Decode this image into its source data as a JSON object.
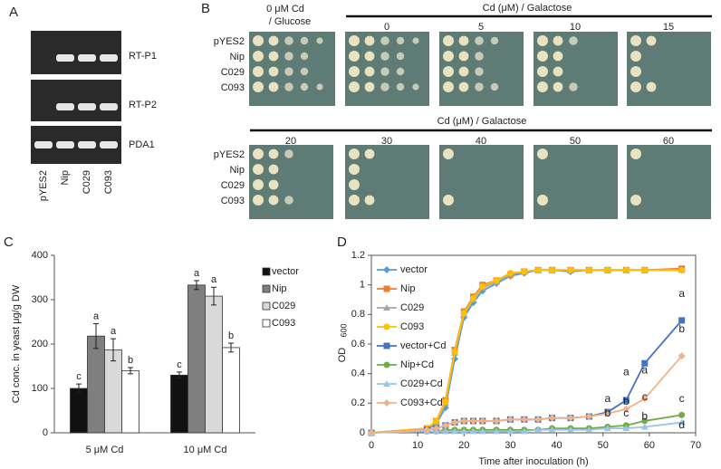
{
  "panels": {
    "a": "A",
    "b": "B",
    "c": "C",
    "d": "D"
  },
  "gel": {
    "rows": [
      "RT-P1",
      "RT-P2",
      "PDA1"
    ],
    "lanes": [
      "pYES2",
      "Nip",
      "C029",
      "C093"
    ]
  },
  "spot_assay": {
    "glucose_header": [
      "0 μM Cd",
      "/ Glucose"
    ],
    "galactose_header": "Cd (μM) / Galactose",
    "galactose_header_2": "Cd (μM) / Galactose",
    "top_concentrations": [
      "0",
      "5",
      "10",
      "15"
    ],
    "bottom_concentrations": [
      "20",
      "30",
      "40",
      "50",
      "60"
    ],
    "top_strains": [
      "pYES2",
      "Nip",
      "C029",
      "C093"
    ],
    "bottom_strains": [
      "pYES2",
      "Nip",
      "C029",
      "C093"
    ]
  },
  "chart_data": [
    {
      "type": "bar",
      "y_label": "Cd conc. in yeast μg/g DW",
      "categories": [
        "5 μM Cd",
        "10 μM Cd"
      ],
      "series": [
        {
          "name": "vector",
          "color": "#111111",
          "values": [
            100,
            130
          ],
          "errors": [
            10,
            7
          ],
          "letters": [
            "c",
            "c"
          ]
        },
        {
          "name": "Nip",
          "color": "#7f7f7f",
          "values": [
            218,
            333
          ],
          "errors": [
            28,
            10
          ],
          "letters": [
            "a",
            "a"
          ]
        },
        {
          "name": "C029",
          "color": "#d9d9d9",
          "values": [
            187,
            308
          ],
          "errors": [
            25,
            20
          ],
          "letters": [
            "a",
            "a"
          ]
        },
        {
          "name": "C093",
          "color": "#ffffff",
          "values": [
            140,
            192
          ],
          "errors": [
            7,
            10
          ],
          "letters": [
            "b",
            "b"
          ]
        }
      ],
      "ylim": [
        0,
        400
      ],
      "yticks": [
        0,
        100,
        200,
        300,
        400
      ]
    },
    {
      "type": "line",
      "x_label": "Time after inoculation (h)",
      "y_label": "OD",
      "y_label_sub": "600",
      "x": [
        0,
        12,
        14,
        16,
        18,
        20,
        22,
        24,
        27,
        30,
        33,
        36,
        39,
        43,
        47,
        51,
        55,
        59,
        67
      ],
      "series": [
        {
          "name": "vector",
          "color": "#5b9bd5",
          "marker": "diamond",
          "values": [
            0,
            0.02,
            0.06,
            0.17,
            0.5,
            0.78,
            0.88,
            0.96,
            1.01,
            1.06,
            1.08,
            1.1,
            1.1,
            1.09,
            1.1,
            1.1,
            1.1,
            1.1,
            1.1
          ]
        },
        {
          "name": "Nip",
          "color": "#ed7d31",
          "marker": "square",
          "values": [
            0,
            0.03,
            0.08,
            0.22,
            0.56,
            0.82,
            0.92,
            1.0,
            1.03,
            1.07,
            1.09,
            1.1,
            1.1,
            1.1,
            1.1,
            1.1,
            1.1,
            1.1,
            1.11
          ]
        },
        {
          "name": "C029",
          "color": "#a5a5a5",
          "marker": "triangle",
          "values": [
            0,
            0.03,
            0.07,
            0.2,
            0.54,
            0.8,
            0.9,
            0.98,
            1.02,
            1.07,
            1.09,
            1.1,
            1.1,
            1.1,
            1.1,
            1.1,
            1.1,
            1.1,
            1.1
          ]
        },
        {
          "name": "C093",
          "color": "#ffc000",
          "marker": "circle",
          "values": [
            0,
            0.03,
            0.08,
            0.21,
            0.55,
            0.81,
            0.91,
            0.99,
            1.03,
            1.08,
            1.09,
            1.1,
            1.1,
            1.1,
            1.1,
            1.1,
            1.1,
            1.1,
            1.1
          ]
        },
        {
          "name": "vector+Cd",
          "color": "#4472c4",
          "marker": "square",
          "values": [
            0,
            0.02,
            0.03,
            0.05,
            0.07,
            0.08,
            0.08,
            0.08,
            0.08,
            0.09,
            0.09,
            0.09,
            0.1,
            0.1,
            0.11,
            0.14,
            0.22,
            0.47,
            0.76
          ]
        },
        {
          "name": "Nip+Cd",
          "color": "#70ad47",
          "marker": "circle",
          "values": [
            0,
            0.01,
            0.01,
            0.02,
            0.02,
            0.02,
            0.02,
            0.02,
            0.02,
            0.02,
            0.02,
            0.02,
            0.03,
            0.03,
            0.03,
            0.04,
            0.05,
            0.08,
            0.12
          ]
        },
        {
          "name": "C029+Cd",
          "color": "#9dc3e6",
          "marker": "triangle",
          "values": [
            0,
            0.01,
            0.01,
            0.01,
            0.01,
            0.01,
            0.01,
            0.01,
            0.01,
            0.01,
            0.01,
            0.02,
            0.02,
            0.02,
            0.02,
            0.03,
            0.03,
            0.04,
            0.07
          ]
        },
        {
          "name": "C093+Cd",
          "color": "#f4b183",
          "marker": "diamond",
          "values": [
            0,
            0.02,
            0.03,
            0.05,
            0.07,
            0.08,
            0.08,
            0.08,
            0.08,
            0.09,
            0.09,
            0.09,
            0.1,
            0.1,
            0.11,
            0.13,
            0.16,
            0.23,
            0.52
          ]
        }
      ],
      "annotations": [
        {
          "text": "a",
          "x": 51,
          "y": 0.18
        },
        {
          "text": "b",
          "x": 51,
          "y": 0.08
        },
        {
          "text": "a",
          "x": 55,
          "y": 0.36
        },
        {
          "text": "b",
          "x": 55,
          "y": 0.16
        },
        {
          "text": "c",
          "x": 55,
          "y": 0.08
        },
        {
          "text": "a",
          "x": 59,
          "y": 0.37
        },
        {
          "text": "c",
          "x": 59,
          "y": 0.19
        },
        {
          "text": "b",
          "x": 59,
          "y": 0.06
        },
        {
          "text": "a",
          "x": 67,
          "y": 0.89
        },
        {
          "text": "b",
          "x": 67,
          "y": 0.65
        },
        {
          "text": "c",
          "x": 67,
          "y": 0.18
        },
        {
          "text": "d",
          "x": 67,
          "y": 0.0
        }
      ],
      "xlim": [
        0,
        70
      ],
      "xticks": [
        0,
        10,
        20,
        30,
        40,
        50,
        60,
        70
      ],
      "ylim": [
        0,
        1.2
      ],
      "yticks": [
        0,
        0.2,
        0.4,
        0.6,
        0.8,
        1,
        1.2
      ]
    }
  ]
}
